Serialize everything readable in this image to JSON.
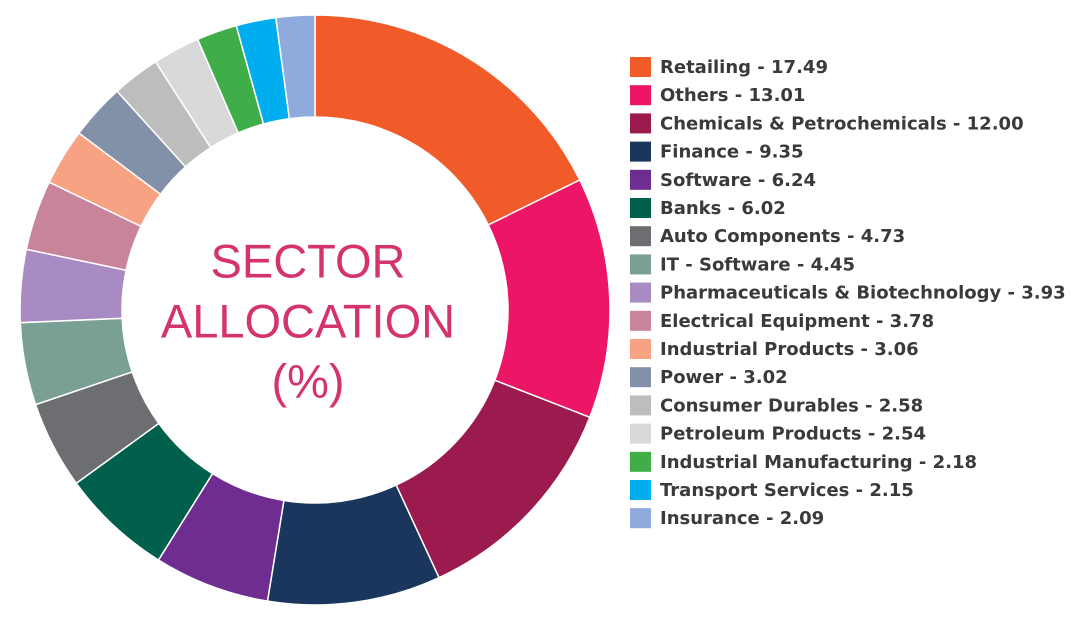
{
  "chart_data": {
    "type": "donut",
    "title": [
      "SECTOR",
      "ALLOCATION",
      "(%)"
    ],
    "categories": [
      "Retailing - 17.49",
      "Others - 13.01",
      "Chemicals & Petrochemicals - 12.00",
      "Finance - 9.35",
      "Software - 6.24",
      "Banks - 6.02",
      "Auto Components - 4.73",
      "IT - Software - 4.45",
      "Pharmaceuticals & Biotechnology - 3.93",
      "Electrical Equipment - 3.78",
      "Industrial Products - 3.06",
      "Power - 3.02",
      "Consumer Durables - 2.58",
      "Petroleum Products - 2.54",
      "Industrial Manufacturing - 2.18",
      "Transport Services - 2.15",
      "Insurance - 2.09"
    ],
    "values": [
      17.49,
      13.01,
      12.0,
      9.35,
      6.24,
      6.02,
      4.73,
      4.45,
      3.93,
      3.78,
      3.06,
      3.02,
      2.58,
      2.54,
      2.18,
      2.15,
      2.09
    ],
    "colors": [
      "#f15a29",
      "#ec1566",
      "#9b1b4f",
      "#1b365d",
      "#6f2c91",
      "#00604b",
      "#6d6e71",
      "#7aa096",
      "#a98bc3",
      "#c8849a",
      "#f7a383",
      "#8391a8",
      "#bdbdbd",
      "#d9d9d9",
      "#3fae49",
      "#00aeef",
      "#8faadc"
    ],
    "legend": "right"
  }
}
